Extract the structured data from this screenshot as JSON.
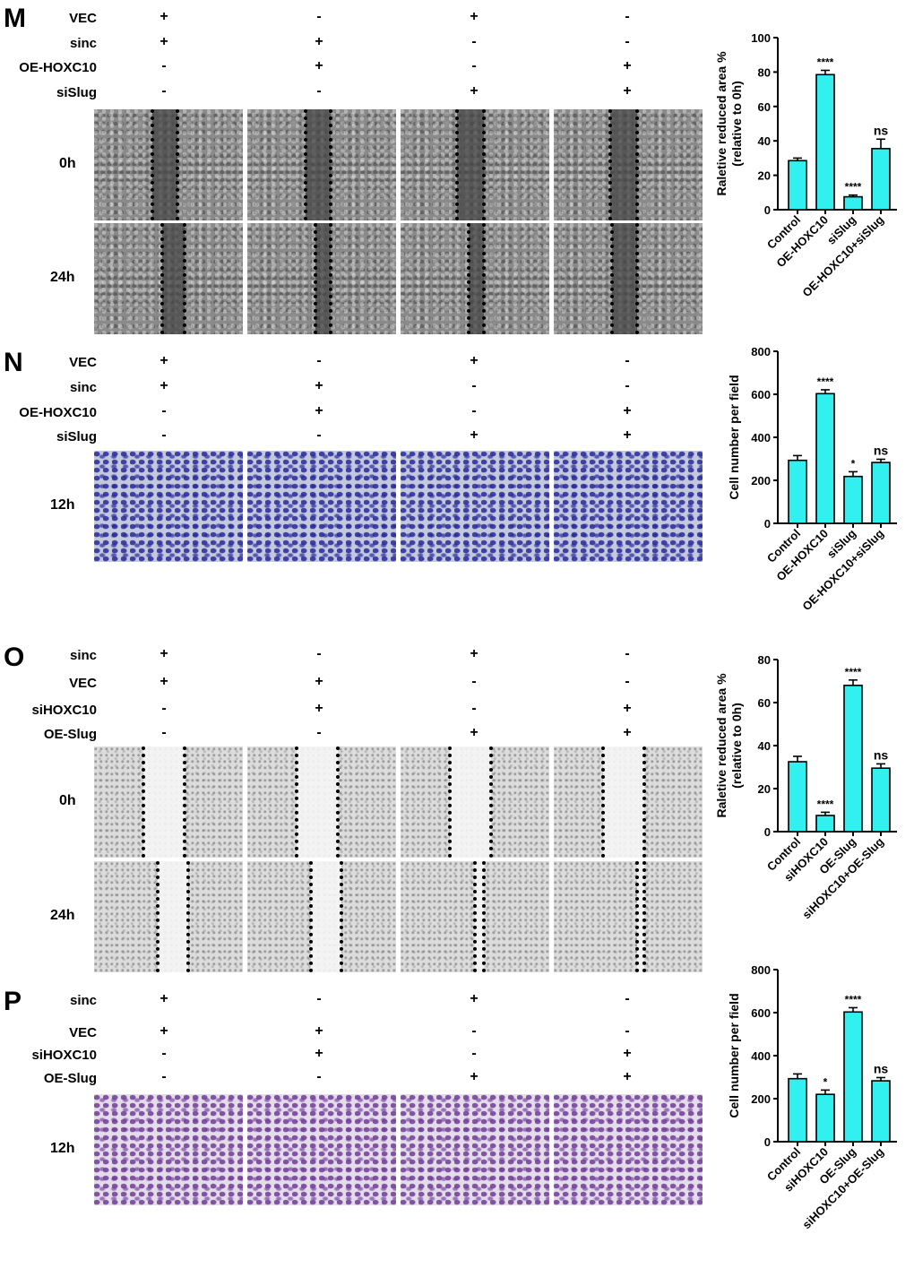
{
  "panels": [
    {
      "letter": "M",
      "conditions": [
        {
          "label": "VEC",
          "signs": [
            "+",
            "-",
            "+",
            "-"
          ]
        },
        {
          "label": "sinc",
          "signs": [
            "+",
            "+",
            "-",
            "-"
          ]
        },
        {
          "label": "OE-HOXC10",
          "signs": [
            "-",
            "+",
            "-",
            "+"
          ]
        },
        {
          "label": "siSlug",
          "signs": [
            "-",
            "-",
            "+",
            "+"
          ]
        }
      ],
      "image_rows": [
        {
          "time": "0h"
        },
        {
          "time": "24h"
        }
      ]
    },
    {
      "letter": "N",
      "conditions": [
        {
          "label": "VEC",
          "signs": [
            "+",
            "-",
            "+",
            "-"
          ]
        },
        {
          "label": "sinc",
          "signs": [
            "+",
            "+",
            "-",
            "-"
          ]
        },
        {
          "label": "OE-HOXC10",
          "signs": [
            "-",
            "+",
            "-",
            "+"
          ]
        },
        {
          "label": "siSlug",
          "signs": [
            "-",
            "-",
            "+",
            "+"
          ]
        }
      ],
      "image_rows": [
        {
          "time": "12h"
        }
      ]
    },
    {
      "letter": "O",
      "conditions": [
        {
          "label": "sinc",
          "signs": [
            "+",
            "-",
            "+",
            "-"
          ]
        },
        {
          "label": "VEC",
          "signs": [
            "+",
            "+",
            "-",
            "-"
          ]
        },
        {
          "label": "siHOXC10",
          "signs": [
            "-",
            "+",
            "-",
            "+"
          ]
        },
        {
          "label": "OE-Slug",
          "signs": [
            "-",
            "-",
            "+",
            "+"
          ]
        }
      ],
      "image_rows": [
        {
          "time": "0h"
        },
        {
          "time": "24h"
        }
      ]
    },
    {
      "letter": "P",
      "conditions": [
        {
          "label": "sinc",
          "signs": [
            "+",
            "-",
            "+",
            "-"
          ]
        },
        {
          "label": "VEC",
          "signs": [
            "+",
            "+",
            "-",
            "-"
          ]
        },
        {
          "label": "siHOXC10",
          "signs": [
            "-",
            "+",
            "-",
            "+"
          ]
        },
        {
          "label": "OE-Slug",
          "signs": [
            "-",
            "-",
            "+",
            "+"
          ]
        }
      ],
      "image_rows": [
        {
          "time": "12h"
        }
      ]
    }
  ],
  "colors": {
    "bar_fill": "#33f0f0",
    "bar_stroke": "#000000"
  },
  "chart_data": [
    {
      "type": "bar",
      "panel": "M",
      "categories": [
        "Control",
        "OE-HOXC10",
        "siSlug",
        "OE-HOXC10+siSlug"
      ],
      "values": [
        28.5,
        78.5,
        7.5,
        35.5
      ],
      "errors": [
        1.5,
        2.5,
        1.0,
        5.5
      ],
      "annotations": [
        "",
        "****",
        "****",
        "ns"
      ],
      "ylabel": "Raletive reduced area % (relative to 0h)",
      "ylabel_lines": [
        "Raletive reduced area %",
        "(relative to 0h)"
      ],
      "ylim": [
        0,
        100
      ],
      "yticks": [
        0,
        20,
        40,
        60,
        80,
        100
      ]
    },
    {
      "type": "bar",
      "panel": "N",
      "categories": [
        "Control",
        "OE-HOXC10",
        "siSlug",
        "OE-HOXC10+siSlug"
      ],
      "values": [
        293,
        603,
        218,
        283
      ],
      "errors": [
        22,
        18,
        22,
        15
      ],
      "annotations": [
        "",
        "****",
        "*",
        "ns"
      ],
      "ylabel": "Cell number per field",
      "ylabel_lines": [
        "Cell number per field"
      ],
      "ylim": [
        0,
        800
      ],
      "yticks": [
        0,
        200,
        400,
        600,
        800
      ]
    },
    {
      "type": "bar",
      "panel": "O",
      "categories": [
        "Control",
        "siHOXC10",
        "OE-Slug",
        "siHOXC10+OE-Slug"
      ],
      "values": [
        32.5,
        7.5,
        68,
        29.5
      ],
      "errors": [
        2.5,
        1.5,
        2.5,
        2.0
      ],
      "annotations": [
        "",
        "****",
        "****",
        "ns"
      ],
      "ylabel": "Raletive reduced area % (relative to 0h)",
      "ylabel_lines": [
        "Raletive reduced area %",
        "(relative to 0h)"
      ],
      "ylim": [
        0,
        80
      ],
      "yticks": [
        0,
        20,
        40,
        60,
        80
      ]
    },
    {
      "type": "bar",
      "panel": "P",
      "categories": [
        "Control",
        "siHOXC10",
        "OE-Slug",
        "siHOXC10+OE-Slug"
      ],
      "values": [
        293,
        220,
        603,
        283
      ],
      "errors": [
        22,
        20,
        20,
        15
      ],
      "annotations": [
        "",
        "*",
        "****",
        "ns"
      ],
      "ylabel": "Cell number per field",
      "ylabel_lines": [
        "Cell number per field"
      ],
      "ylim": [
        0,
        800
      ],
      "yticks": [
        0,
        200,
        400,
        600,
        800
      ]
    }
  ]
}
